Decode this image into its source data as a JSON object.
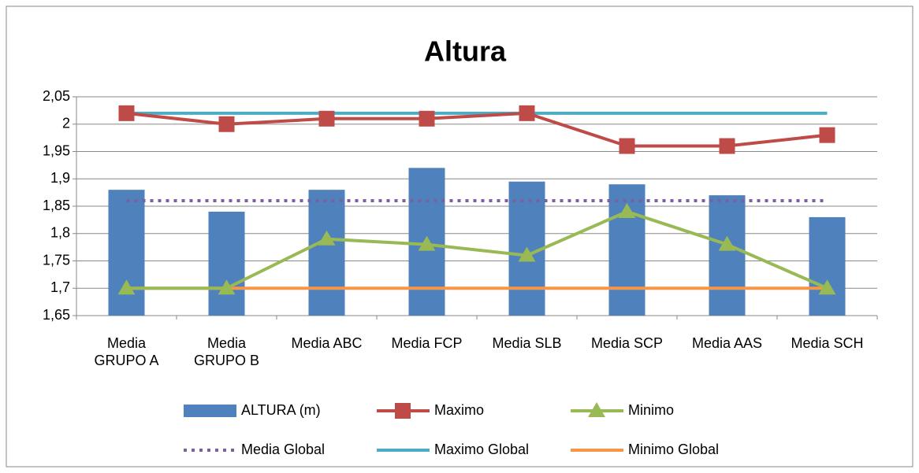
{
  "chart_data": {
    "type": "combo",
    "title": "Altura",
    "categories": [
      "Media GRUPO A",
      "Media GRUPO B",
      "Media ABC",
      "Media FCP",
      "Media SLB",
      "Media SCP",
      "Media AAS",
      "Media SCH"
    ],
    "ylim": [
      1.65,
      2.05
    ],
    "yticks": [
      {
        "value": 1.65,
        "label": "1,65"
      },
      {
        "value": 1.7,
        "label": "1,7"
      },
      {
        "value": 1.75,
        "label": "1,75"
      },
      {
        "value": 1.8,
        "label": "1,8"
      },
      {
        "value": 1.85,
        "label": "1,85"
      },
      {
        "value": 1.9,
        "label": "1,9"
      },
      {
        "value": 1.95,
        "label": "1,95"
      },
      2,
      {
        "value": 2.05,
        "label": "2,05"
      }
    ],
    "grid": true,
    "legend": "bottom",
    "series": [
      {
        "name": "ALTURA (m)",
        "type": "bar",
        "color": "#4f81bd",
        "values": [
          1.88,
          1.84,
          1.88,
          1.92,
          1.895,
          1.89,
          1.87,
          1.83
        ]
      },
      {
        "name": "Maximo",
        "type": "line",
        "marker": "square",
        "color": "#be4b48",
        "values": [
          2.02,
          2.0,
          2.01,
          2.01,
          2.02,
          1.96,
          1.96,
          1.98
        ]
      },
      {
        "name": "Minimo",
        "type": "line",
        "marker": "triangle",
        "color": "#98b954",
        "values": [
          1.7,
          1.7,
          1.79,
          1.78,
          1.76,
          1.84,
          1.78,
          1.7
        ]
      },
      {
        "name": "Media Global",
        "type": "line",
        "dash": "dotted",
        "color": "#7e5fa0",
        "values": [
          1.86,
          1.86,
          1.86,
          1.86,
          1.86,
          1.86,
          1.86,
          1.86
        ]
      },
      {
        "name": "Maximo Global",
        "type": "line",
        "color": "#4bacc6",
        "values": [
          2.02,
          2.02,
          2.02,
          2.02,
          2.02,
          2.02,
          2.02,
          2.02
        ]
      },
      {
        "name": "Minimo Global",
        "type": "line",
        "color": "#f79646",
        "values": [
          1.7,
          1.7,
          1.7,
          1.7,
          1.7,
          1.7,
          1.7,
          1.7
        ]
      }
    ]
  }
}
